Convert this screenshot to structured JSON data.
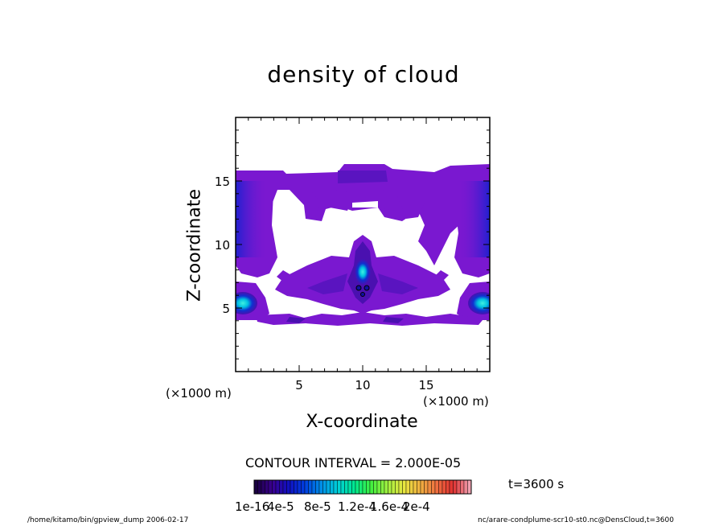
{
  "chart_data": {
    "type": "heatmap",
    "title": "density of cloud",
    "xlabel": "X-coordinate",
    "ylabel": "Z-coordinate",
    "x_unit_label_left": "(×1000 m)",
    "x_unit_label_right": "(×1000 m)",
    "xlim": [
      0,
      20
    ],
    "ylim": [
      0,
      20
    ],
    "xticks": [
      "5",
      "10",
      "15"
    ],
    "yticks": [
      "5",
      "10",
      "15"
    ],
    "contour_interval": "CONTOUR INTERVAL = 2.000E-05",
    "time": "t=3600 s",
    "colorbar": {
      "range": [
        1e-16,
        0.0002
      ],
      "tick_labels": [
        "1e-16",
        "4e-5",
        "8e-5",
        "1.2e-4",
        "1.6e-4",
        "2e-4"
      ],
      "colors": [
        "#1a0040",
        "#3a0090",
        "#1010c0",
        "#0040e0",
        "#0090e8",
        "#00d0d8",
        "#00e890",
        "#40f040",
        "#a0f040",
        "#e8e840",
        "#f0b040",
        "#f07040",
        "#e03030",
        "#f0a0b0"
      ]
    },
    "plume_color": "#7a18d0",
    "plume_edge_color": "#4a10b0",
    "peaks": [
      {
        "x": 10,
        "z": 8,
        "value": 0.00012
      },
      {
        "x": 0.3,
        "z": 5.2,
        "value": 0.0001
      },
      {
        "x": 19.7,
        "z": 5.2,
        "value": 0.0001
      }
    ]
  },
  "footer": {
    "left": "/home/kitamo/bin/gpview_dump   2006-02-17",
    "right": "nc/arare-condplume-scr10-st0.nc@DensCloud,t=3600"
  }
}
